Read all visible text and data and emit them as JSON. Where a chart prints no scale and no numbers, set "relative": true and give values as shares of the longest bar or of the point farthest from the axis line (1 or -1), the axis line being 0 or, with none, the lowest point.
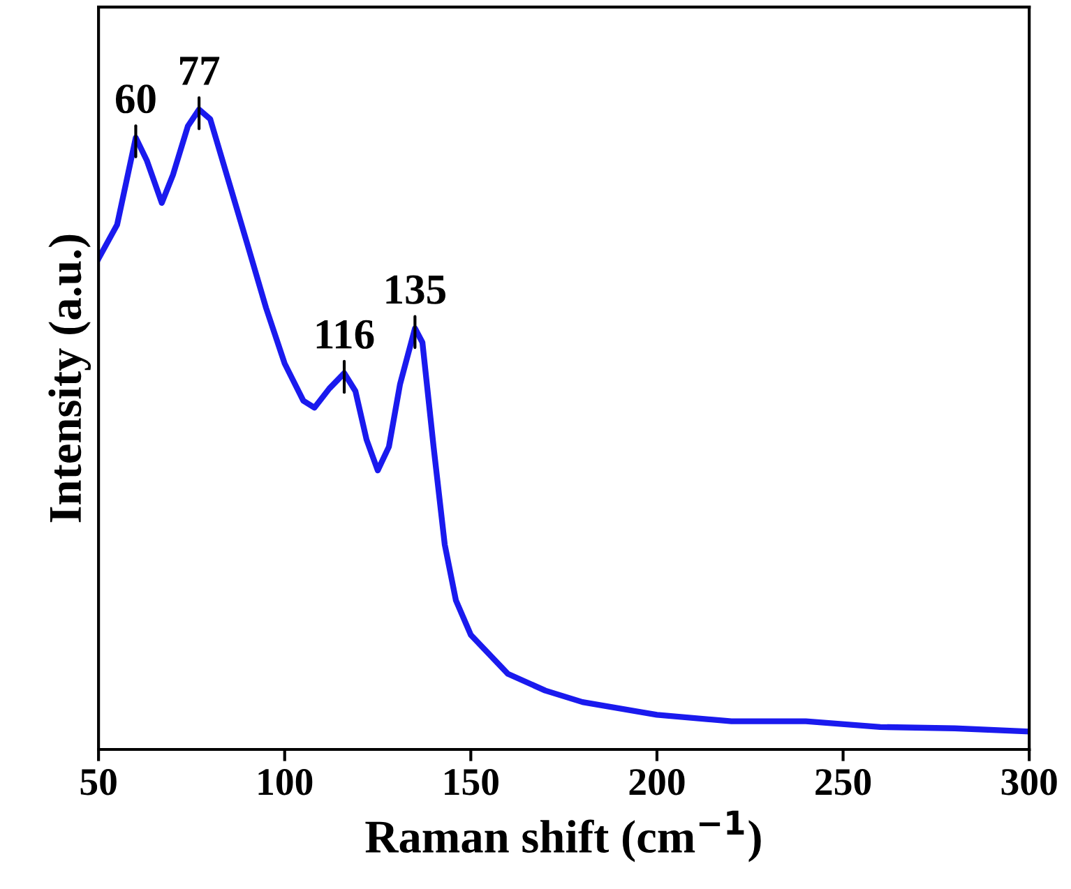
{
  "chart_data": {
    "type": "line",
    "relative": true,
    "xlabel": "Raman shift (cm$^{−1}$)",
    "ylabel": "Intensity (a.u.)",
    "xlim": [
      50,
      300
    ],
    "xticks": [
      50,
      100,
      150,
      200,
      250,
      300
    ],
    "grid": false,
    "legend": false,
    "marker": "none",
    "line_style": "solid",
    "tick_labels": "x",
    "x": [
      50,
      55,
      60,
      63,
      67,
      70,
      74,
      77,
      80,
      85,
      90,
      95,
      100,
      105,
      108,
      112,
      116,
      119,
      122,
      125,
      128,
      131,
      135,
      137,
      140,
      143,
      146,
      150,
      160,
      170,
      180,
      200,
      220,
      240,
      260,
      280,
      300
    ],
    "series": [
      {
        "color": "#1a1aee",
        "values": [
          0.767,
          0.82,
          0.956,
          0.92,
          0.854,
          0.898,
          0.974,
          1.0,
          0.985,
          0.887,
          0.789,
          0.69,
          0.603,
          0.545,
          0.534,
          0.564,
          0.588,
          0.56,
          0.484,
          0.436,
          0.473,
          0.571,
          0.658,
          0.636,
          0.473,
          0.32,
          0.233,
          0.179,
          0.118,
          0.092,
          0.074,
          0.054,
          0.044,
          0.044,
          0.035,
          0.033,
          0.028
        ]
      }
    ],
    "annotations": [
      {
        "text": "60",
        "x": 60,
        "y": 0.956
      },
      {
        "text": "77",
        "x": 77,
        "y": 1.0
      },
      {
        "text": "116",
        "x": 116,
        "y": 0.588
      },
      {
        "text": "135",
        "x": 135,
        "y": 0.658
      }
    ]
  }
}
